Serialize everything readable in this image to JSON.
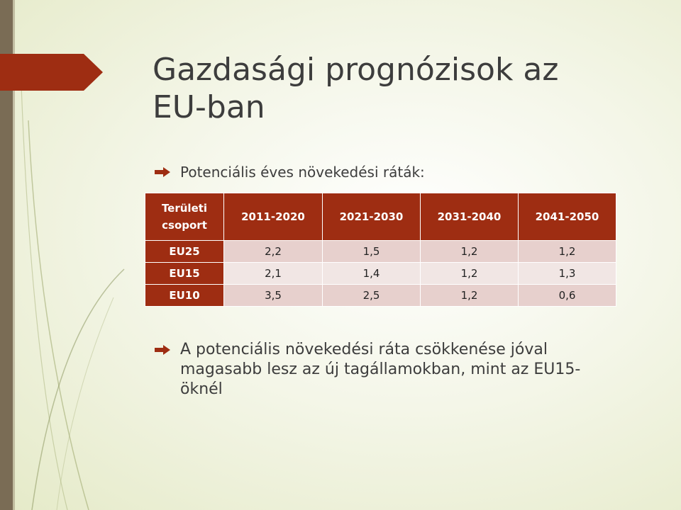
{
  "slide": {
    "title_line1": "Gazdasági prognózisok az",
    "title_line2": "EU-ban",
    "accent_color": "#9e2d12",
    "bar_color": "#7a6c55",
    "bullet_icon": "arrow-right-icon"
  },
  "bullet1": "Potenciális éves növekedési ráták:",
  "table": {
    "corner_line1": "Területi",
    "corner_line2": "csoport",
    "headers": [
      "2011-2020",
      "2021-2030",
      "2031-2040",
      "2041-2050"
    ],
    "rows": [
      {
        "group": "EU25",
        "values": [
          "2,2",
          "1,5",
          "1,2",
          "1,2"
        ]
      },
      {
        "group": "EU15",
        "values": [
          "2,1",
          "1,4",
          "1,2",
          "1,3"
        ]
      },
      {
        "group": "EU10",
        "values": [
          "3,5",
          "2,5",
          "1,2",
          "0,6"
        ]
      }
    ]
  },
  "bullet2_line1": "A potenciális növekedési ráta csökkenése jóval",
  "bullet2_line2": "magasabb lesz az új tagállamokban, mint az EU15-",
  "bullet2_line3": "öknél"
}
